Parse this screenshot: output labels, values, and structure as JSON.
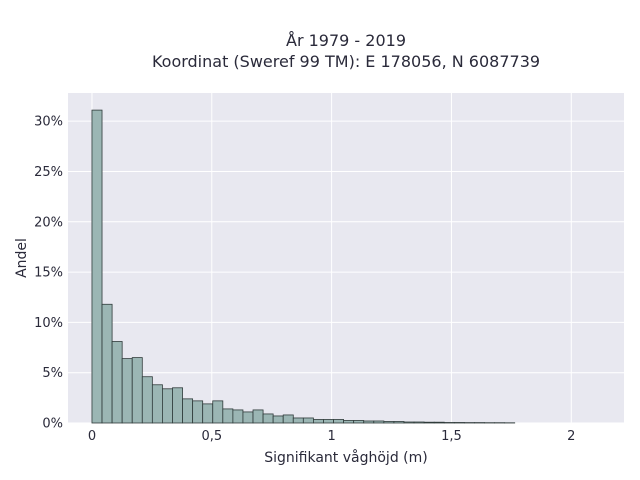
{
  "chart_data": {
    "type": "bar",
    "title_line1": "År 1979 - 2019",
    "title_line2": "Koordinat (Sweref 99 TM): E 178056, N 6087739",
    "xlabel": "Signifikant våghöjd (m)",
    "ylabel": "Andel",
    "xlim": [
      -0.1,
      2.22
    ],
    "ylim": [
      0,
      32.8
    ],
    "x_ticks": [
      {
        "value": 0,
        "label": "0"
      },
      {
        "value": 0.5,
        "label": "0,5"
      },
      {
        "value": 1,
        "label": "1"
      },
      {
        "value": 1.5,
        "label": "1,5"
      },
      {
        "value": 2,
        "label": "2"
      }
    ],
    "y_ticks": [
      {
        "value": 0,
        "label": "0%"
      },
      {
        "value": 5,
        "label": "5%"
      },
      {
        "value": 10,
        "label": "10%"
      },
      {
        "value": 15,
        "label": "15%"
      },
      {
        "value": 20,
        "label": "20%"
      },
      {
        "value": 25,
        "label": "25%"
      },
      {
        "value": 30,
        "label": "30%"
      }
    ],
    "grid": true,
    "bin_width": 0.042,
    "bins_start": [
      0,
      0.042,
      0.084,
      0.126,
      0.168,
      0.21,
      0.252,
      0.294,
      0.336,
      0.378,
      0.42,
      0.462,
      0.504,
      0.546,
      0.588,
      0.63,
      0.672,
      0.714,
      0.756,
      0.798,
      0.84,
      0.882,
      0.924,
      0.966,
      1.008,
      1.05,
      1.092,
      1.134,
      1.176,
      1.218,
      1.26,
      1.302,
      1.344,
      1.386,
      1.428,
      1.47,
      1.512,
      1.554,
      1.596,
      1.638,
      1.68,
      1.722
    ],
    "values": [
      31.1,
      11.8,
      8.1,
      6.4,
      6.5,
      4.6,
      3.8,
      3.4,
      3.5,
      2.4,
      2.2,
      1.9,
      2.2,
      1.4,
      1.3,
      1.1,
      1.3,
      0.9,
      0.7,
      0.8,
      0.5,
      0.5,
      0.35,
      0.35,
      0.35,
      0.25,
      0.25,
      0.2,
      0.2,
      0.15,
      0.15,
      0.1,
      0.1,
      0.08,
      0.08,
      0.05,
      0.05,
      0.04,
      0.04,
      0.03,
      0.03,
      0.02
    ],
    "colors": {
      "background": "#e8e8f0",
      "bar_fill": "#9bb6b4",
      "bar_stroke": "#2f3b3a",
      "grid": "#ffffff"
    }
  }
}
